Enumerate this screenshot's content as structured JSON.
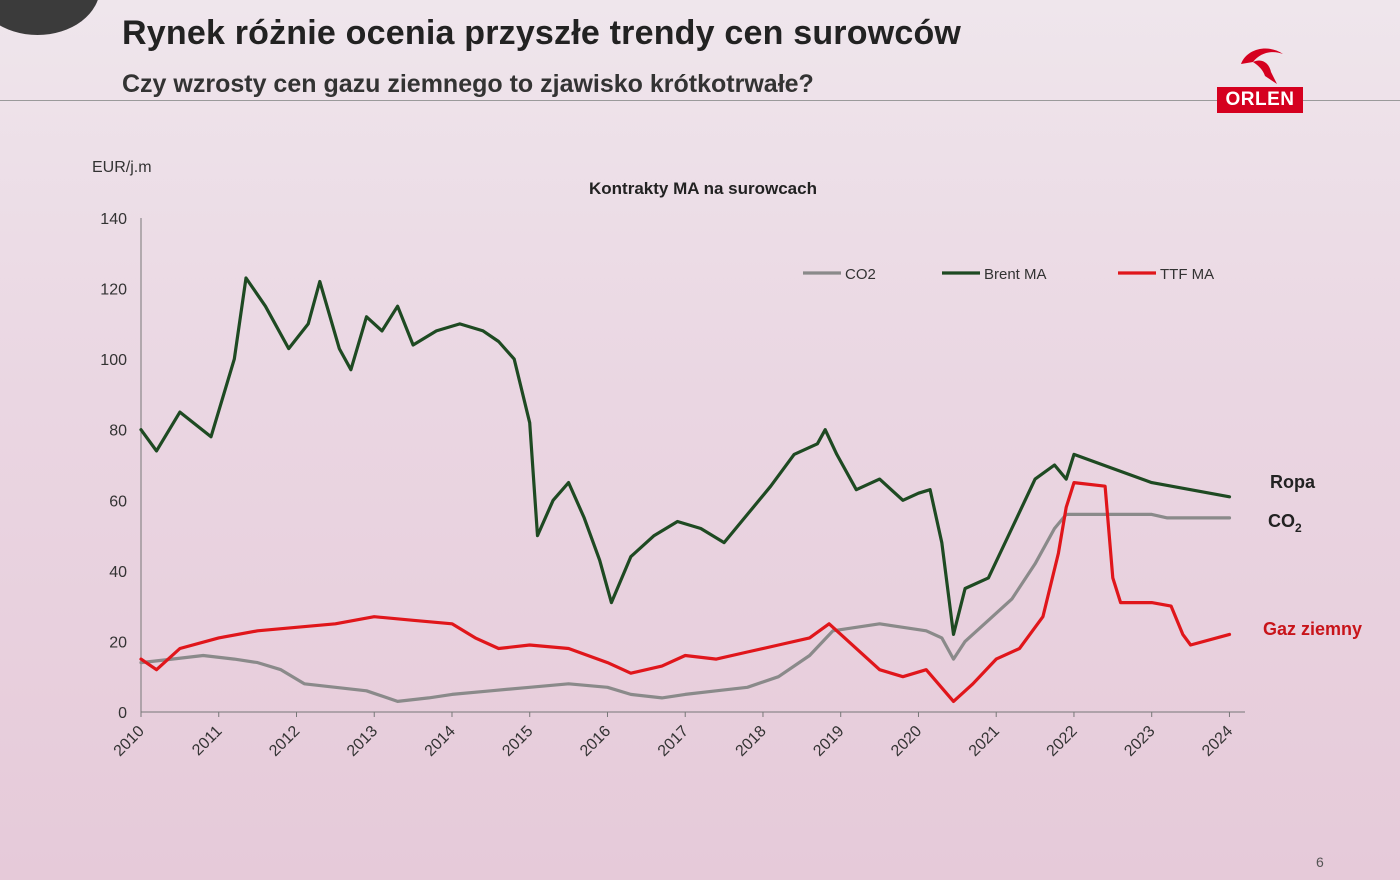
{
  "slide": {
    "title": "Rynek różnie ocenia przyszłe trendy cen surowców",
    "subtitle": "Czy wzrosty cen gazu ziemnego to zjawisko krótkotrwałe?",
    "logo_text": "ORLEN",
    "page_number": "6",
    "colors": {
      "brand": "#d5001f",
      "brent": "#1e4a22",
      "ttf": "#e0161b",
      "co2": "#8a8a8a"
    }
  },
  "chart_data": {
    "type": "line",
    "title": "Kontrakty MA na surowcach",
    "ylabel": "EUR/j.m",
    "xlabel": "",
    "xlim": [
      2010,
      2024.2
    ],
    "ylim": [
      0,
      140
    ],
    "yticks": [
      0,
      20,
      40,
      60,
      80,
      100,
      120,
      140
    ],
    "xticks": [
      "2010",
      "2011",
      "2012",
      "2013",
      "2014",
      "2015",
      "2016",
      "2017",
      "2018",
      "2019",
      "2020",
      "2021",
      "2022",
      "2023",
      "2024"
    ],
    "grid": false,
    "legend_position": "top-right",
    "series": [
      {
        "name": "CO2",
        "end_label": "CO",
        "end_label_sub": "2",
        "color": "#8a8a8a",
        "x": [
          2010,
          2010.4,
          2010.8,
          2011.2,
          2011.5,
          2011.8,
          2012.1,
          2012.5,
          2012.9,
          2013.3,
          2013.7,
          2014.0,
          2014.5,
          2015.0,
          2015.5,
          2016.0,
          2016.3,
          2016.7,
          2017.0,
          2017.4,
          2017.8,
          2018.2,
          2018.6,
          2018.9,
          2019.2,
          2019.5,
          2019.8,
          2020.1,
          2020.3,
          2020.45,
          2020.6,
          2020.9,
          2021.2,
          2021.5,
          2021.75,
          2021.9,
          2022.1,
          2022.5,
          2023.0,
          2023.2,
          2023.6,
          2024.0
        ],
        "y": [
          14,
          15,
          16,
          15,
          14,
          12,
          8,
          7,
          6,
          3,
          4,
          5,
          6,
          7,
          8,
          7,
          5,
          4,
          5,
          6,
          7,
          10,
          16,
          23,
          24,
          25,
          24,
          23,
          21,
          15,
          20,
          26,
          32,
          42,
          52,
          56,
          56,
          56,
          56,
          55,
          55,
          55
        ]
      },
      {
        "name": "Brent MA",
        "end_label": "Ropa",
        "color": "#1e4a22",
        "x": [
          2010,
          2010.2,
          2010.5,
          2010.9,
          2011.2,
          2011.35,
          2011.6,
          2011.9,
          2012.15,
          2012.3,
          2012.55,
          2012.7,
          2012.9,
          2013.1,
          2013.3,
          2013.5,
          2013.8,
          2014.1,
          2014.4,
          2014.6,
          2014.8,
          2015.0,
          2015.1,
          2015.3,
          2015.5,
          2015.7,
          2015.9,
          2016.05,
          2016.3,
          2016.6,
          2016.9,
          2017.2,
          2017.5,
          2017.8,
          2018.1,
          2018.4,
          2018.7,
          2018.8,
          2018.95,
          2019.2,
          2019.5,
          2019.8,
          2020.0,
          2020.15,
          2020.3,
          2020.45,
          2020.6,
          2020.9,
          2021.2,
          2021.5,
          2021.75,
          2021.9,
          2022.0,
          2022.5,
          2023.0,
          2023.5,
          2024.0
        ],
        "y": [
          80,
          74,
          85,
          78,
          100,
          123,
          115,
          103,
          110,
          122,
          103,
          97,
          112,
          108,
          115,
          104,
          108,
          110,
          108,
          105,
          100,
          82,
          50,
          60,
          65,
          55,
          43,
          31,
          44,
          50,
          54,
          52,
          48,
          56,
          64,
          73,
          76,
          80,
          73,
          63,
          66,
          60,
          62,
          63,
          48,
          22,
          35,
          38,
          52,
          66,
          70,
          66,
          73,
          69,
          65,
          63,
          61
        ]
      },
      {
        "name": "TTF MA",
        "end_label": "Gaz ziemny",
        "color": "#e0161b",
        "x": [
          2010,
          2010.2,
          2010.5,
          2011.0,
          2011.5,
          2012.0,
          2012.5,
          2013.0,
          2013.5,
          2014.0,
          2014.3,
          2014.6,
          2015.0,
          2015.5,
          2016.0,
          2016.3,
          2016.7,
          2017.0,
          2017.4,
          2017.8,
          2018.2,
          2018.6,
          2018.85,
          2019.1,
          2019.5,
          2019.8,
          2020.1,
          2020.45,
          2020.7,
          2021.0,
          2021.3,
          2021.6,
          2021.8,
          2021.9,
          2022.0,
          2022.4,
          2022.5,
          2022.6,
          2023.0,
          2023.25,
          2023.4,
          2023.5,
          2024.0
        ],
        "y": [
          15,
          12,
          18,
          21,
          23,
          24,
          25,
          27,
          26,
          25,
          21,
          18,
          19,
          18,
          14,
          11,
          13,
          16,
          15,
          17,
          19,
          21,
          25,
          20,
          12,
          10,
          12,
          3,
          8,
          15,
          18,
          27,
          45,
          58,
          65,
          64,
          38,
          31,
          31,
          30,
          22,
          19,
          22
        ]
      }
    ]
  }
}
